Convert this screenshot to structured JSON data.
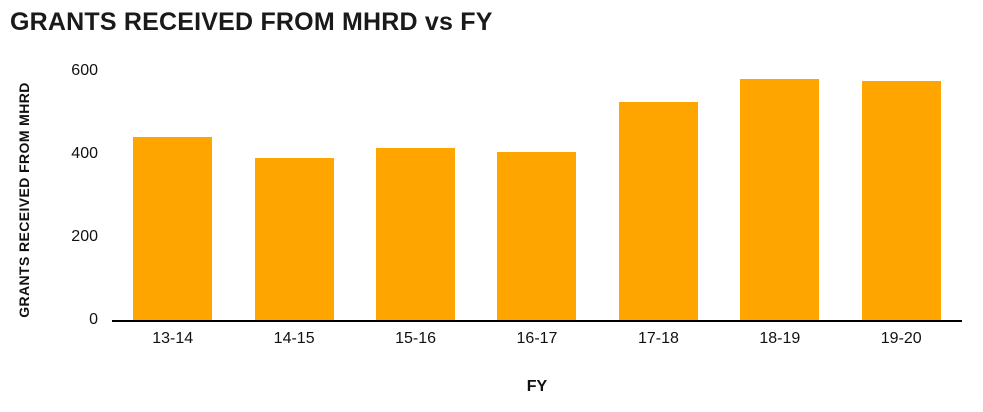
{
  "chart_data": {
    "type": "bar",
    "title": "GRANTS RECEIVED FROM MHRD vs FY",
    "categories": [
      "13-14",
      "14-15",
      "15-16",
      "16-17",
      "17-18",
      "18-19",
      "19-20"
    ],
    "values": [
      440,
      390,
      415,
      405,
      525,
      580,
      575
    ],
    "xlabel": "FY",
    "ylabel": "GRANTS RECEIVED FROM MHRD",
    "ylim": [
      0,
      600
    ],
    "yticks": [
      0,
      200,
      400,
      600
    ],
    "bar_color": "#FFA500",
    "axis_color": "#000000",
    "text_color": "#111111",
    "grid": false,
    "legend": false
  }
}
